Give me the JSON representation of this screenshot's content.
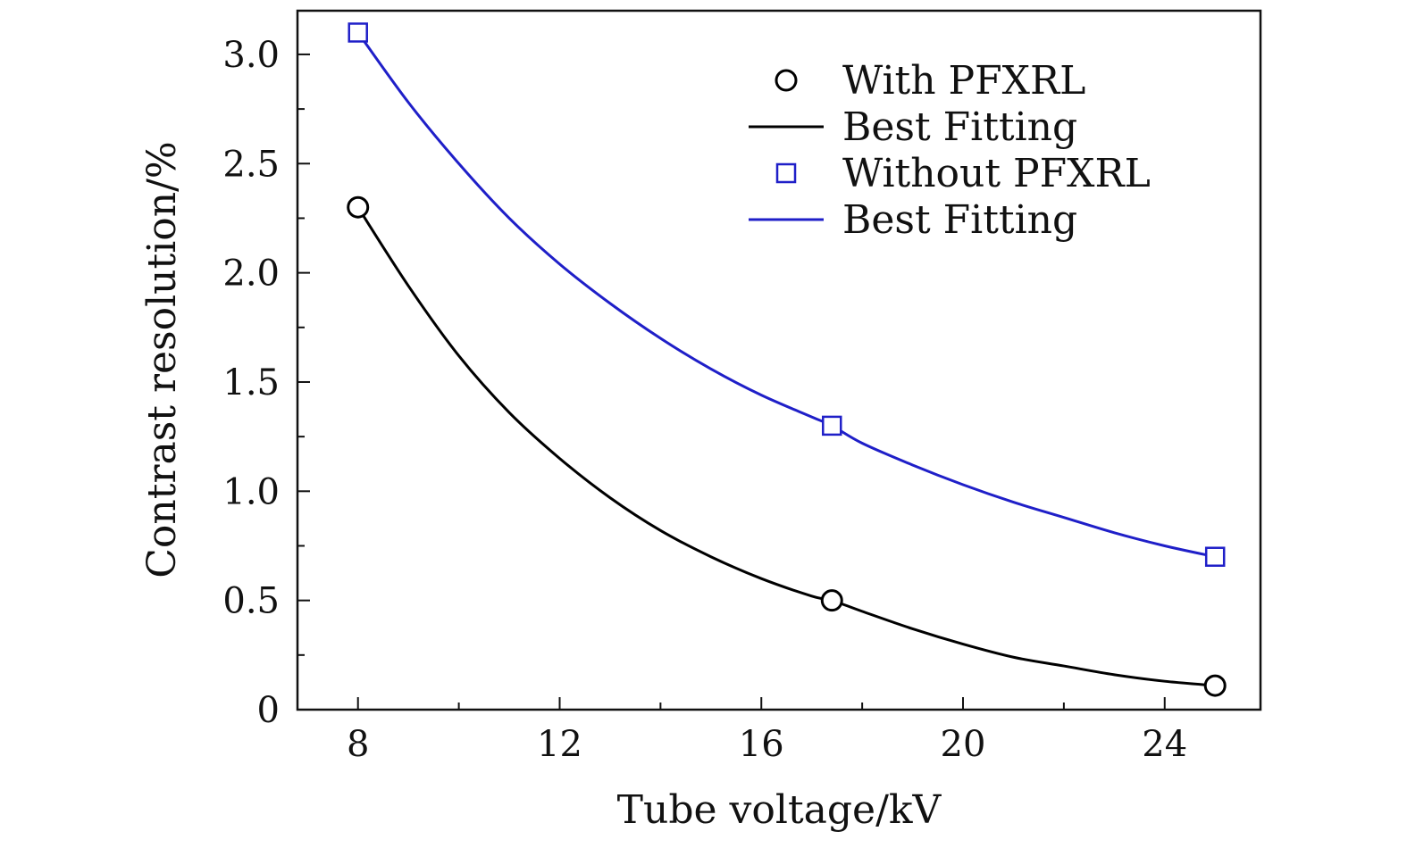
{
  "chart_data": {
    "type": "scatter",
    "xlabel": "Tube voltage/kV",
    "ylabel": "Contrast resolution/%",
    "xlim": [
      6.8,
      25.9
    ],
    "ylim": [
      0,
      3.2
    ],
    "x_ticks": [
      8,
      12,
      16,
      20,
      24
    ],
    "x_tick_labels": [
      "8",
      "12",
      "16",
      "20",
      "24"
    ],
    "y_ticks": [
      0,
      0.5,
      1.0,
      1.5,
      2.0,
      2.5,
      3.0
    ],
    "y_tick_labels": [
      "0",
      "0.5",
      "1.0",
      "1.5",
      "2.0",
      "2.5",
      "3.0"
    ],
    "legend_position": "top-right",
    "series": [
      {
        "name": "With PFXRL",
        "marker": "circle",
        "color": "#000000",
        "x": [
          8,
          17.4,
          25
        ],
        "y": [
          2.3,
          0.5,
          0.11
        ]
      },
      {
        "name": "Best Fitting",
        "kind": "fit-line",
        "color": "#000000",
        "x": [
          8,
          9,
          10,
          11,
          12,
          13,
          14,
          15,
          16,
          17,
          17.4,
          18,
          19,
          20,
          21,
          22,
          23,
          24,
          25
        ],
        "y": [
          2.3,
          1.94,
          1.62,
          1.36,
          1.15,
          0.97,
          0.82,
          0.7,
          0.6,
          0.52,
          0.5,
          0.45,
          0.37,
          0.3,
          0.24,
          0.2,
          0.16,
          0.13,
          0.11
        ]
      },
      {
        "name": "Without PFXRL",
        "marker": "square",
        "color": "#1f1fc8",
        "x": [
          8,
          17.4,
          25
        ],
        "y": [
          3.1,
          1.3,
          0.7
        ]
      },
      {
        "name": "Best Fitting",
        "kind": "fit-line",
        "color": "#1f1fc8",
        "x": [
          8,
          9,
          10,
          11,
          12,
          13,
          14,
          15,
          16,
          17,
          17.4,
          18,
          19,
          20,
          21,
          22,
          23,
          24,
          25
        ],
        "y": [
          3.1,
          2.78,
          2.5,
          2.25,
          2.04,
          1.86,
          1.7,
          1.56,
          1.44,
          1.34,
          1.3,
          1.22,
          1.12,
          1.03,
          0.95,
          0.88,
          0.81,
          0.75,
          0.7
        ]
      }
    ]
  }
}
